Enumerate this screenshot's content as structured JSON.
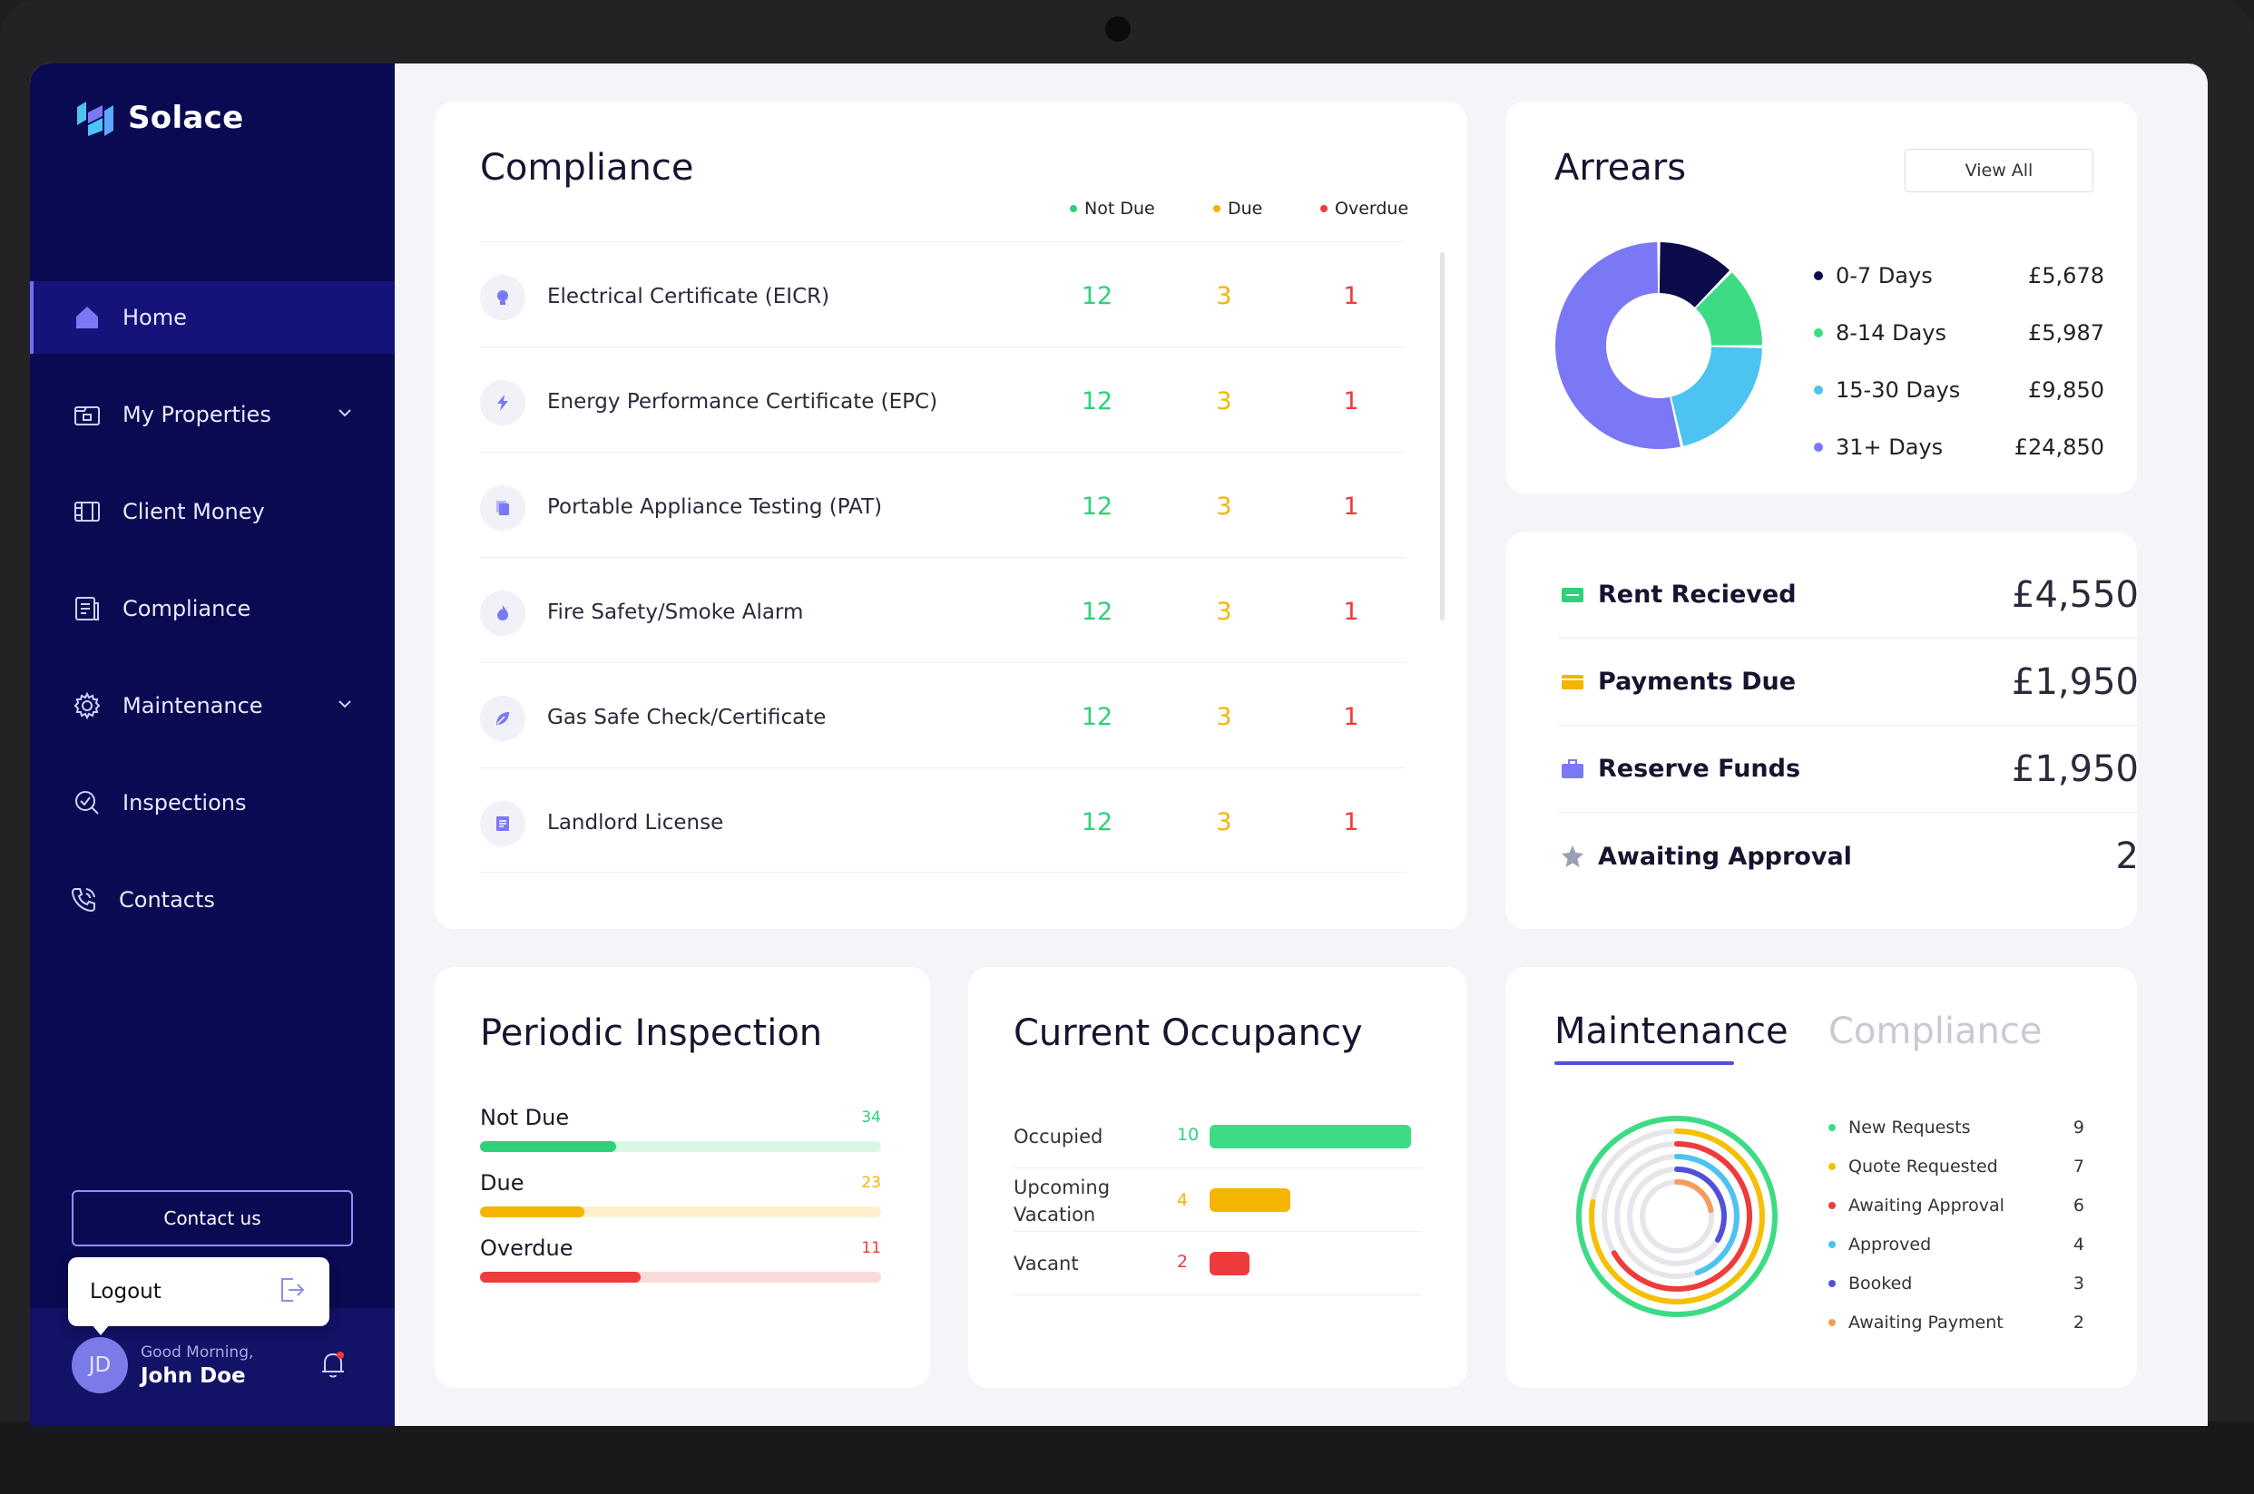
{
  "brand": {
    "name": "Solace"
  },
  "sidebar": {
    "items": [
      {
        "label": "Home",
        "icon": "home-icon",
        "active": true
      },
      {
        "label": "My Properties",
        "icon": "building-icon",
        "expandable": true
      },
      {
        "label": "Client Money",
        "icon": "money-icon"
      },
      {
        "label": "Compliance",
        "icon": "document-icon"
      },
      {
        "label": "Maintenance",
        "icon": "gear-icon",
        "expandable": true
      },
      {
        "label": "Inspections",
        "icon": "search-check-icon"
      },
      {
        "label": "Contacts",
        "icon": "phone-icon"
      }
    ],
    "contact_button": "Contact us",
    "logout_label": "Logout",
    "user": {
      "initials": "JD",
      "greeting": "Good Morning,",
      "name": "John Doe"
    }
  },
  "compliance": {
    "title": "Compliance",
    "legend": [
      {
        "label": "Not Due",
        "color": "#2fd07a"
      },
      {
        "label": "Due",
        "color": "#f5b400"
      },
      {
        "label": "Overdue",
        "color": "#ee3b3b"
      }
    ],
    "rows": [
      {
        "name": "Electrical Certificate (EICR)",
        "icon": "bulb-icon",
        "not_due": "12",
        "due": "3",
        "overdue": "1"
      },
      {
        "name": "Energy Performance Certificate (EPC)",
        "icon": "lightning-icon",
        "not_due": "12",
        "due": "3",
        "overdue": "1"
      },
      {
        "name": "Portable Appliance Testing (PAT)",
        "icon": "copy-icon",
        "not_due": "12",
        "due": "3",
        "overdue": "1"
      },
      {
        "name": "Fire Safety/Smoke Alarm",
        "icon": "flame-icon",
        "not_due": "12",
        "due": "3",
        "overdue": "1"
      },
      {
        "name": "Gas Safe Check/Certificate",
        "icon": "leaf-icon",
        "not_due": "12",
        "due": "3",
        "overdue": "1"
      },
      {
        "name": "Landlord License",
        "icon": "license-icon",
        "not_due": "12",
        "due": "3",
        "overdue": "1"
      }
    ]
  },
  "arrears": {
    "title": "Arrears",
    "view_all": "View All",
    "items": [
      {
        "label": "0-7 Days",
        "amount": "£5,678",
        "value": 5678,
        "color": "#0b0b4a"
      },
      {
        "label": "8-14 Days",
        "amount": "£5,987",
        "value": 5987,
        "color": "#3ddc84"
      },
      {
        "label": "15-30 Days",
        "amount": "£9,850",
        "value": 9850,
        "color": "#4cc3f0"
      },
      {
        "label": "31+ Days",
        "amount": "£24,850",
        "value": 24850,
        "color": "#7b78f5"
      }
    ]
  },
  "finance": {
    "items": [
      {
        "label": "Rent Recieved",
        "value": "£4,550",
        "icon": "cash-icon",
        "color": "#2fd07a"
      },
      {
        "label": "Payments Due",
        "value": "£1,950",
        "icon": "wallet-icon",
        "color": "#f5b400"
      },
      {
        "label": "Reserve Funds",
        "value": "£1,950",
        "icon": "briefcase-icon",
        "color": "#7b78f5"
      },
      {
        "label": "Awaiting Approval",
        "value": "2",
        "icon": "star-icon",
        "color": "#9aa0b4"
      }
    ]
  },
  "periodic_inspection": {
    "title": "Periodic Inspection",
    "items": [
      {
        "label": "Not Due",
        "count": "34",
        "fraction": 0.34,
        "color": "#2fd07a",
        "track": "#d9f7e6"
      },
      {
        "label": "Due",
        "count": "23",
        "fraction": 0.26,
        "color": "#f5b400",
        "track": "#fdf0cc"
      },
      {
        "label": "Overdue",
        "count": "11",
        "fraction": 0.4,
        "color": "#ee3b3b",
        "track": "#fbdada"
      }
    ]
  },
  "occupancy": {
    "title": "Current Occupancy",
    "items": [
      {
        "label": "Occupied",
        "count": "10",
        "value": 10,
        "color": "#3ddc84"
      },
      {
        "label": "Upcoming\nVacation",
        "count": "4",
        "value": 4,
        "color": "#f5b400"
      },
      {
        "label": "Vacant",
        "count": "2",
        "value": 2,
        "color": "#ee3b3b"
      }
    ]
  },
  "maintenance": {
    "tabs": [
      "Maintenance",
      "Compliance"
    ],
    "items": [
      {
        "label": "New Requests",
        "count": "9",
        "value": 9,
        "color": "#3ddc84"
      },
      {
        "label": "Quote Requested",
        "count": "7",
        "value": 7,
        "color": "#f5c000"
      },
      {
        "label": "Awaiting Approval",
        "count": "6",
        "value": 6,
        "color": "#ee3b3b"
      },
      {
        "label": "Approved",
        "count": "4",
        "value": 4,
        "color": "#4cc3f0"
      },
      {
        "label": "Booked",
        "count": "3",
        "value": 3,
        "color": "#5151d8"
      },
      {
        "label": "Awaiting Payment",
        "count": "2",
        "value": 2,
        "color": "#f59b5b"
      }
    ],
    "max": 9
  }
}
